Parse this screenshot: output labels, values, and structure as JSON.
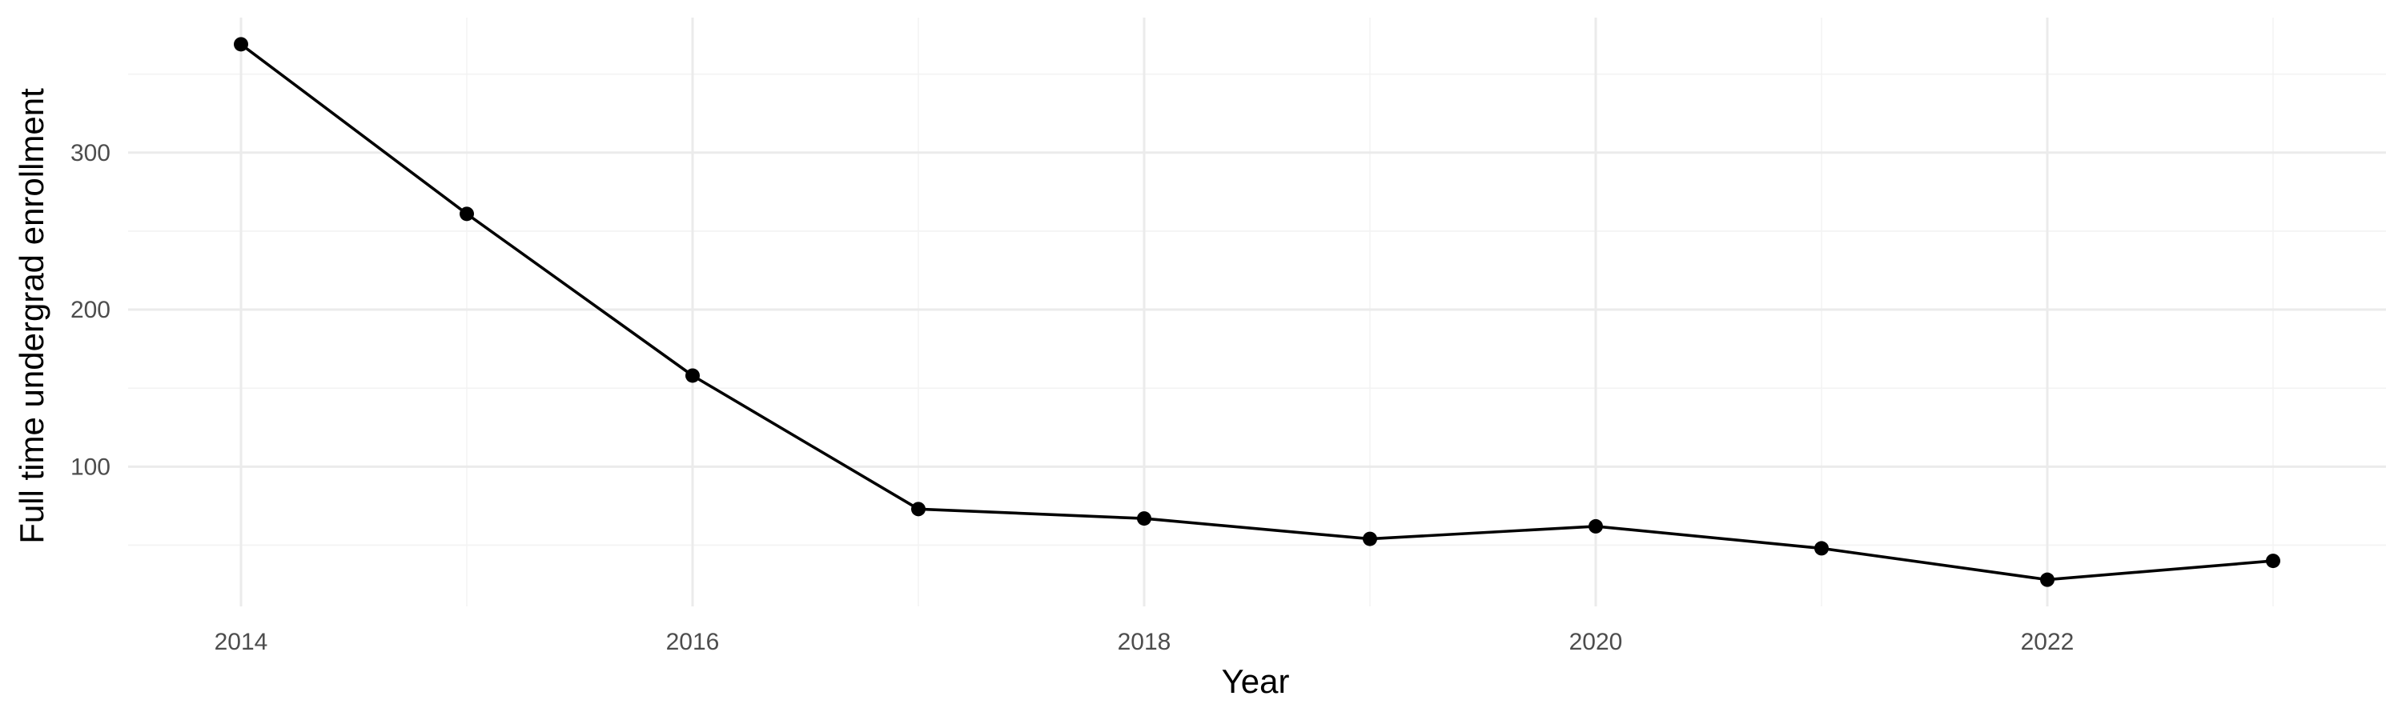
{
  "chart_data": {
    "type": "line",
    "title": "",
    "xlabel": "Year",
    "ylabel": "Full time undergrad enrollment",
    "x": [
      2014,
      2015,
      2016,
      2017,
      2018,
      2019,
      2020,
      2021,
      2022,
      2023
    ],
    "series": [
      {
        "values": [
          369,
          261,
          158,
          73,
          67,
          54,
          62,
          48,
          28,
          40
        ]
      }
    ],
    "x_ticks": [
      2014,
      2016,
      2018,
      2020,
      2022
    ],
    "x_tick_labels": [
      "2014",
      "2016",
      "2018",
      "2020",
      "2022"
    ],
    "y_ticks": [
      100,
      200,
      300
    ],
    "y_tick_labels": [
      "100",
      "200",
      "300"
    ],
    "xlim": [
      2013.5,
      2023.5
    ],
    "ylim": [
      11,
      386
    ],
    "grid": true,
    "legend": "none",
    "colors": {
      "line": "#000000",
      "grid": "#ebebeb",
      "tick_text": "#4d4d4d"
    }
  }
}
